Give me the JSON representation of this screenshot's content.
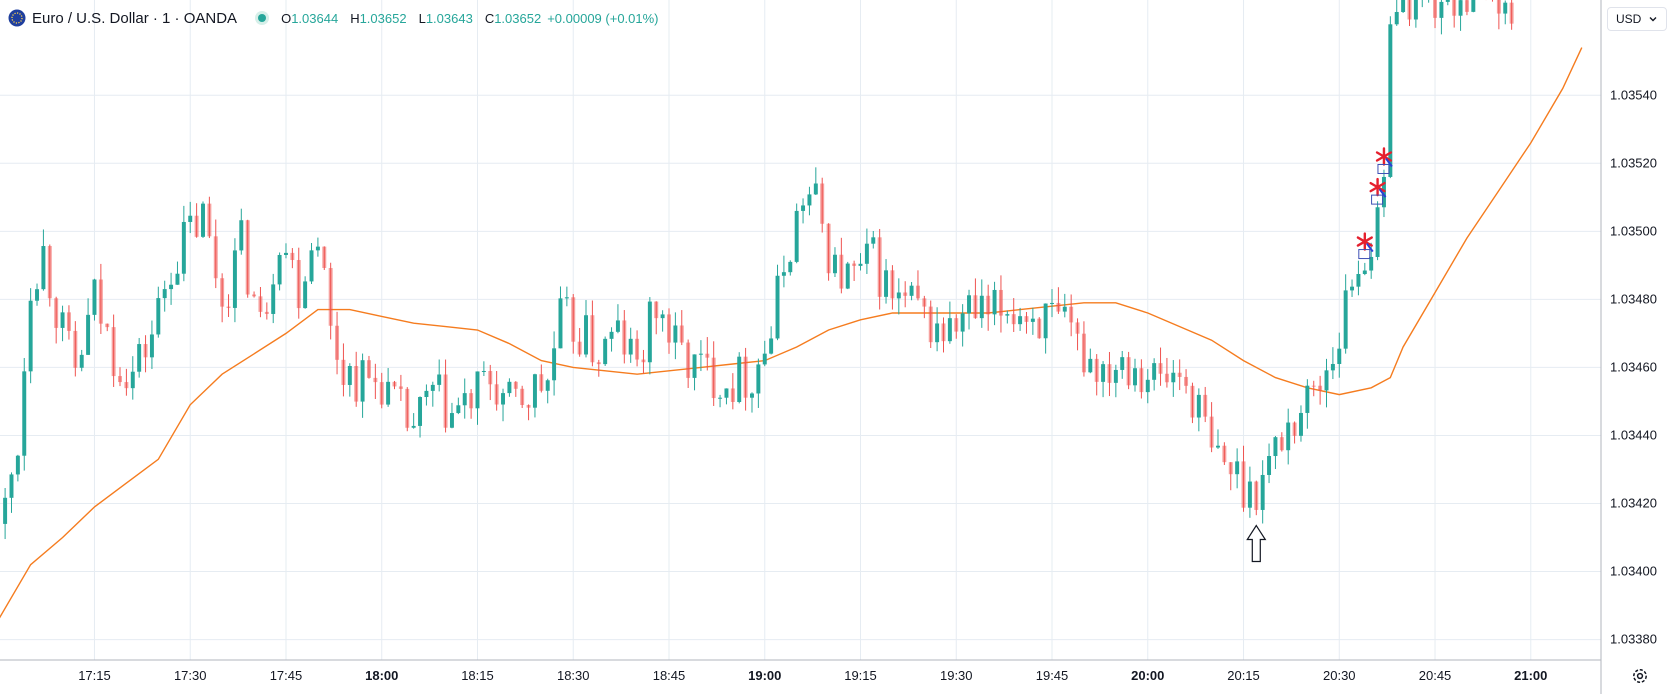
{
  "legend": {
    "symbol": "Euro / U.S. Dollar · 1 · OANDA",
    "o_label": "O",
    "o_value": "1.03644",
    "h_label": "H",
    "h_value": "1.03652",
    "l_label": "L",
    "l_value": "1.03643",
    "c_label": "C",
    "c_value": "1.03652",
    "change": "+0.00009 (+0.01%)"
  },
  "currency": {
    "label": "USD"
  },
  "colors": {
    "up": "#26a69a",
    "down": "#ef5350",
    "ma": "#f57c1f",
    "grid": "#e6ecf2",
    "star": "#e5202e"
  },
  "icons": [
    "eurusd-flag-icon",
    "chevron-down-icon",
    "gear-icon",
    "arrow-up-icon",
    "star-marker-icon"
  ],
  "chart_data": {
    "type": "candlestick",
    "y_ticks": [
      "1.03540",
      "1.03520",
      "1.03500",
      "1.03480",
      "1.03460",
      "1.03440",
      "1.03420",
      "1.03400",
      "1.03380"
    ],
    "x_ticks": [
      {
        "label": "17:15",
        "bold": false
      },
      {
        "label": "17:30",
        "bold": false
      },
      {
        "label": "17:45",
        "bold": false
      },
      {
        "label": "18:00",
        "bold": true
      },
      {
        "label": "18:15",
        "bold": false
      },
      {
        "label": "18:30",
        "bold": false
      },
      {
        "label": "18:45",
        "bold": false
      },
      {
        "label": "19:00",
        "bold": true
      },
      {
        "label": "19:15",
        "bold": false
      },
      {
        "label": "19:30",
        "bold": false
      },
      {
        "label": "19:45",
        "bold": false
      },
      {
        "label": "20:00",
        "bold": true
      },
      {
        "label": "20:15",
        "bold": false
      },
      {
        "label": "20:30",
        "bold": false
      },
      {
        "label": "20:45",
        "bold": false
      },
      {
        "label": "21:00",
        "bold": true
      }
    ],
    "ylim": [
      1.03374,
      1.03568
    ],
    "price_path": [
      [
        "17:01",
        1.03418
      ],
      [
        "17:03",
        1.03438
      ],
      [
        "17:05",
        1.03486
      ],
      [
        "17:07",
        1.03494
      ],
      [
        "17:10",
        1.0347
      ],
      [
        "17:12",
        1.03458
      ],
      [
        "17:15",
        1.0348
      ],
      [
        "17:18",
        1.03464
      ],
      [
        "17:21",
        1.03458
      ],
      [
        "17:24",
        1.0347
      ],
      [
        "17:27",
        1.0349
      ],
      [
        "17:30",
        1.035
      ],
      [
        "17:32",
        1.03504
      ],
      [
        "17:35",
        1.0348
      ],
      [
        "17:38",
        1.03496
      ],
      [
        "17:41",
        1.03472
      ],
      [
        "17:44",
        1.035
      ],
      [
        "17:47",
        1.03484
      ],
      [
        "17:50",
        1.03502
      ],
      [
        "17:52",
        1.0347
      ],
      [
        "17:54",
        1.0346
      ],
      [
        "17:57",
        1.03456
      ],
      [
        "18:00",
        1.03456
      ],
      [
        "18:02",
        1.03448
      ],
      [
        "18:05",
        1.03442
      ],
      [
        "18:08",
        1.03452
      ],
      [
        "18:11",
        1.03446
      ],
      [
        "18:14",
        1.0345
      ],
      [
        "18:17",
        1.03456
      ],
      [
        "18:20",
        1.03448
      ],
      [
        "18:23",
        1.03452
      ],
      [
        "18:26",
        1.03456
      ],
      [
        "18:28",
        1.03474
      ],
      [
        "18:31",
        1.0347
      ],
      [
        "18:34",
        1.03464
      ],
      [
        "18:37",
        1.0347
      ],
      [
        "18:40",
        1.0346
      ],
      [
        "18:43",
        1.03478
      ],
      [
        "18:46",
        1.03466
      ],
      [
        "18:49",
        1.0346
      ],
      [
        "18:52",
        1.03458
      ],
      [
        "18:55",
        1.03456
      ],
      [
        "18:58",
        1.03458
      ],
      [
        "19:01",
        1.0347
      ],
      [
        "19:03",
        1.0349
      ],
      [
        "19:06",
        1.0351
      ],
      [
        "19:08",
        1.03508
      ],
      [
        "19:11",
        1.03488
      ],
      [
        "19:14",
        1.03486
      ],
      [
        "19:17",
        1.03492
      ],
      [
        "19:20",
        1.0348
      ],
      [
        "19:23",
        1.03478
      ],
      [
        "19:26",
        1.03472
      ],
      [
        "19:29",
        1.0347
      ],
      [
        "19:32",
        1.03476
      ],
      [
        "19:35",
        1.03474
      ],
      [
        "19:38",
        1.03478
      ],
      [
        "19:41",
        1.03476
      ],
      [
        "19:44",
        1.03474
      ],
      [
        "19:47",
        1.0347
      ],
      [
        "19:50",
        1.03464
      ],
      [
        "19:53",
        1.0346
      ],
      [
        "19:56",
        1.03464
      ],
      [
        "19:59",
        1.0346
      ],
      [
        "20:02",
        1.03456
      ],
      [
        "20:05",
        1.03458
      ],
      [
        "20:08",
        1.03448
      ],
      [
        "20:10",
        1.03434
      ],
      [
        "20:13",
        1.0343
      ],
      [
        "20:16",
        1.03424
      ],
      [
        "20:18",
        1.03428
      ],
      [
        "20:21",
        1.0344
      ],
      [
        "20:24",
        1.03448
      ],
      [
        "20:27",
        1.03456
      ],
      [
        "20:30",
        1.0347
      ],
      [
        "20:32",
        1.03486
      ],
      [
        "20:34",
        1.03494
      ],
      [
        "20:36",
        1.035
      ],
      [
        "20:37",
        1.03512
      ],
      [
        "20:38",
        1.03568
      ],
      [
        "20:55",
        1.0357
      ],
      [
        "20:57",
        1.0356
      ]
    ],
    "ma_path": [
      [
        "17:00",
        1.03386
      ],
      [
        "17:05",
        1.03402
      ],
      [
        "17:10",
        1.0341
      ],
      [
        "17:15",
        1.03419
      ],
      [
        "17:20",
        1.03426
      ],
      [
        "17:25",
        1.03433
      ],
      [
        "17:30",
        1.03449
      ],
      [
        "17:35",
        1.03458
      ],
      [
        "17:40",
        1.03464
      ],
      [
        "17:45",
        1.0347
      ],
      [
        "17:50",
        1.03477
      ],
      [
        "17:55",
        1.03477
      ],
      [
        "18:00",
        1.03475
      ],
      [
        "18:05",
        1.03473
      ],
      [
        "18:10",
        1.03472
      ],
      [
        "18:15",
        1.03471
      ],
      [
        "18:20",
        1.03467
      ],
      [
        "18:25",
        1.03462
      ],
      [
        "18:30",
        1.0346
      ],
      [
        "18:35",
        1.03459
      ],
      [
        "18:40",
        1.03458
      ],
      [
        "18:45",
        1.03459
      ],
      [
        "18:50",
        1.0346
      ],
      [
        "18:55",
        1.03461
      ],
      [
        "19:00",
        1.03462
      ],
      [
        "19:05",
        1.03466
      ],
      [
        "19:10",
        1.03471
      ],
      [
        "19:15",
        1.03474
      ],
      [
        "19:20",
        1.03476
      ],
      [
        "19:25",
        1.03476
      ],
      [
        "19:30",
        1.03476
      ],
      [
        "19:35",
        1.03476
      ],
      [
        "19:40",
        1.03477
      ],
      [
        "19:45",
        1.03478
      ],
      [
        "19:50",
        1.03479
      ],
      [
        "19:55",
        1.03479
      ],
      [
        "20:00",
        1.03476
      ],
      [
        "20:05",
        1.03472
      ],
      [
        "20:10",
        1.03468
      ],
      [
        "20:15",
        1.03462
      ],
      [
        "20:20",
        1.03457
      ],
      [
        "20:25",
        1.03454
      ],
      [
        "20:30",
        1.03452
      ],
      [
        "20:35",
        1.03454
      ],
      [
        "20:38",
        1.03457
      ],
      [
        "20:40",
        1.03466
      ],
      [
        "20:45",
        1.03482
      ],
      [
        "20:50",
        1.03498
      ],
      [
        "20:55",
        1.03512
      ],
      [
        "21:00",
        1.03526
      ],
      [
        "21:05",
        1.03542
      ],
      [
        "21:08",
        1.03554
      ]
    ],
    "markers": [
      {
        "type": "arrow-up",
        "time": "20:17",
        "price": 1.0341
      },
      {
        "type": "star",
        "time": "20:34",
        "price": 1.03497
      },
      {
        "type": "star",
        "time": "20:36",
        "price": 1.03513
      },
      {
        "type": "star",
        "time": "20:37",
        "price": 1.03522
      }
    ]
  }
}
